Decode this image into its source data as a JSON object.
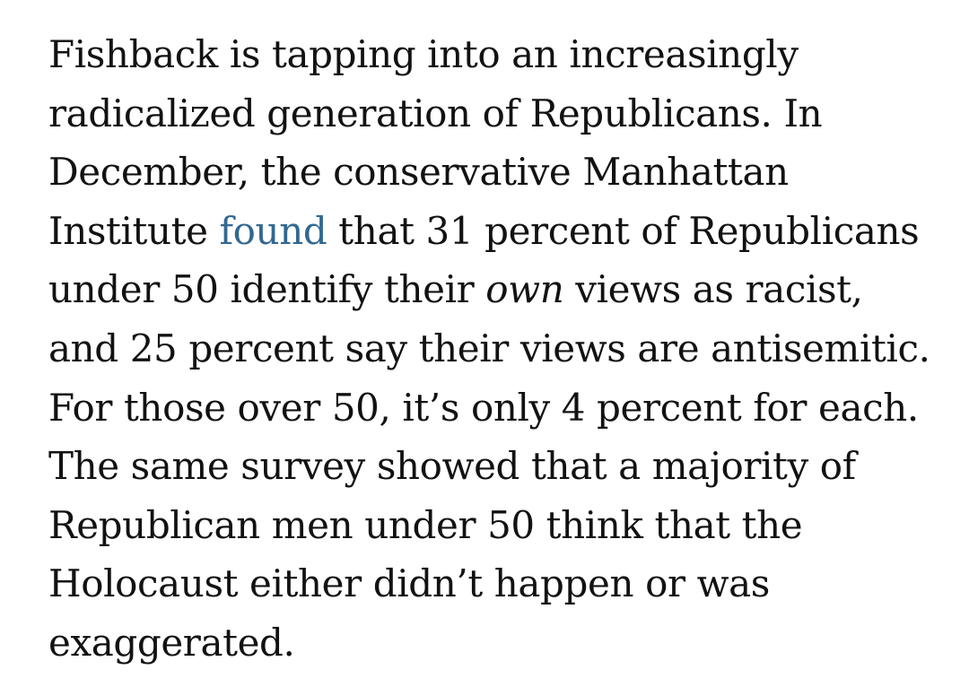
{
  "article": {
    "paragraph": {
      "line1": "Fishback is tapping into an increasingly",
      "line2": "radicalized generation of Republicans. In",
      "line3": "December, the conservative Manhattan",
      "line4_before": "Institute ",
      "line4_link": "found",
      "line4_after": " that 31 percent of Republicans",
      "line5_before": "under 50 identify their ",
      "line5_em": "own",
      "line5_after": " views as racist,",
      "line6": "and 25 percent say their views are antisemitic.",
      "line7": "For those over 50, it’s only 4 percent for each.",
      "line8": "The same survey showed that a majority of",
      "line9": "Republican men under 50 think that the",
      "line10": "Holocaust either didn’t happen or was",
      "line11": "exaggerated."
    },
    "link_color": "#326891",
    "text_color": "#121212"
  }
}
